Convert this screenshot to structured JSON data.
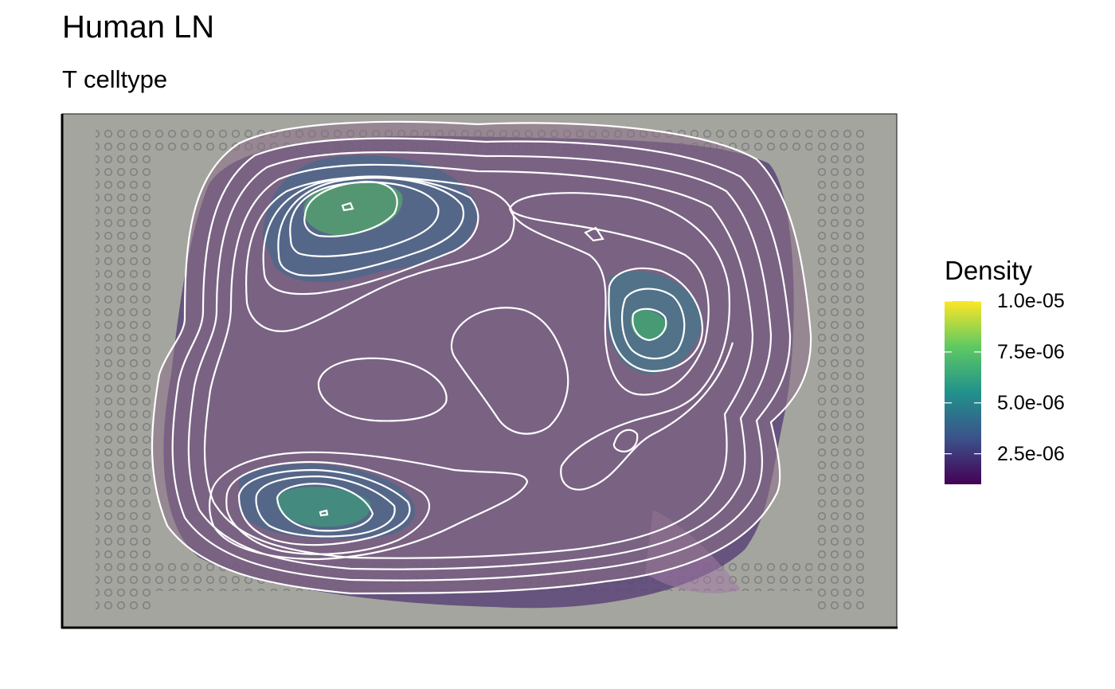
{
  "title": "Human LN",
  "subtitle": "T celltype",
  "chart_data": {
    "type": "contour",
    "title": "Human LN",
    "subtitle": "T celltype",
    "legend": {
      "title": "Density",
      "placement": "right",
      "min": 1e-06,
      "max": 1e-05,
      "ticks": [
        {
          "value": 1e-05,
          "label": "1.0e-05"
        },
        {
          "value": 7.5e-06,
          "label": "7.5e-06"
        },
        {
          "value": 5e-06,
          "label": "5.0e-06"
        },
        {
          "value": 2.5e-06,
          "label": "2.5e-06"
        }
      ],
      "colors": [
        "#440154",
        "#3b528b",
        "#21918c",
        "#5ec962",
        "#fde725"
      ]
    },
    "peaks": [
      {
        "name": "upper-left",
        "density": 8e-06
      },
      {
        "name": "right",
        "density": 6.5e-06
      },
      {
        "name": "lower-left",
        "density": 6e-06
      }
    ],
    "grid": false,
    "background": "tissue image"
  }
}
